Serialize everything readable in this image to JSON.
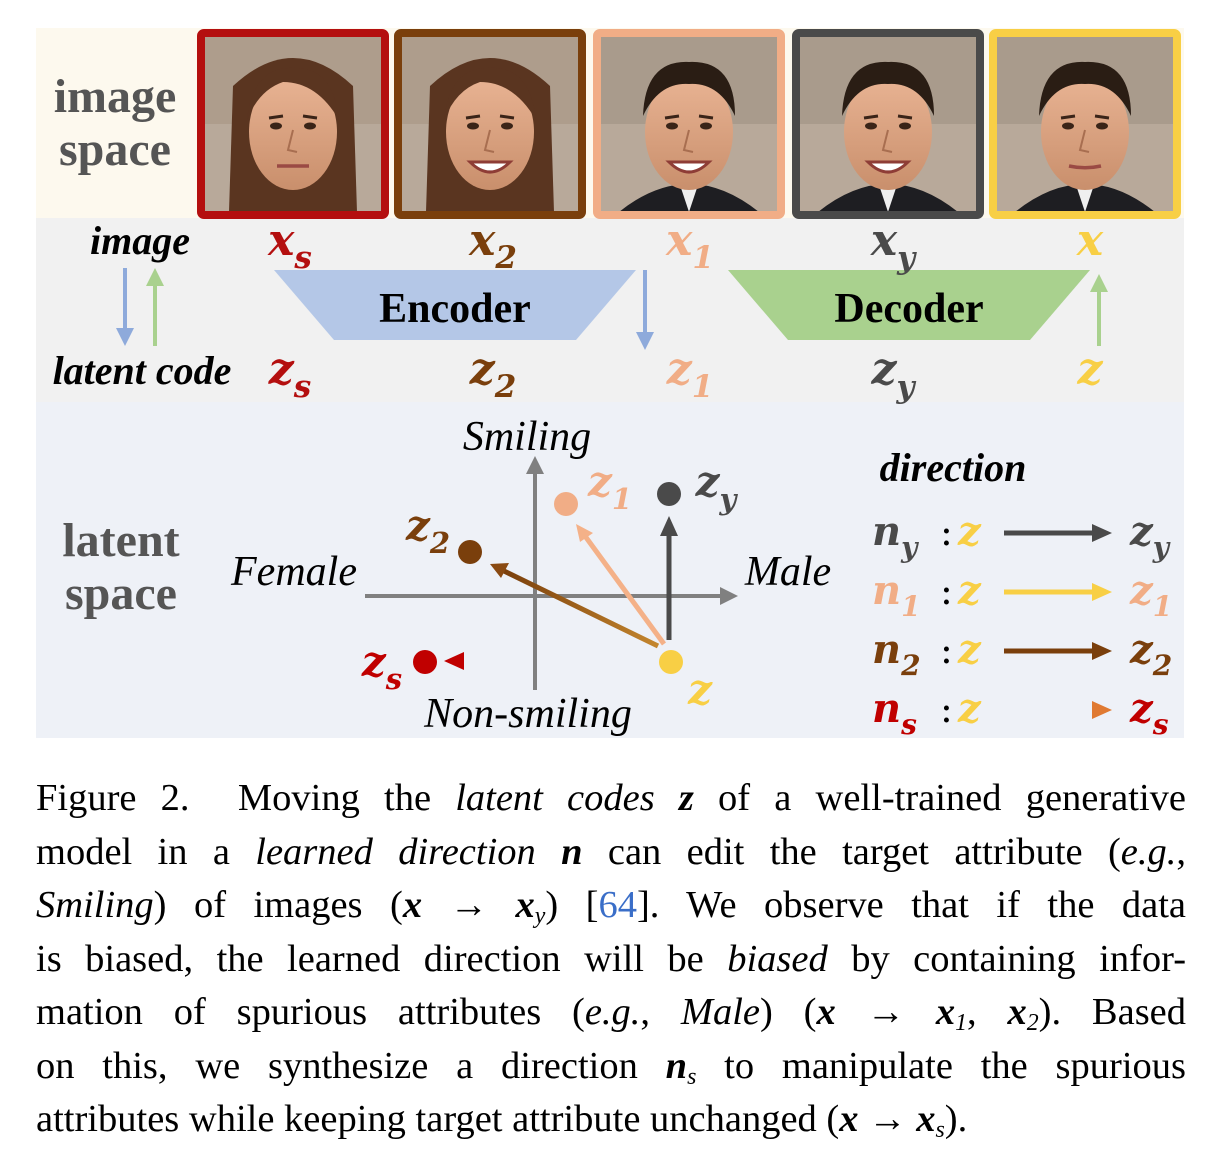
{
  "figure": {
    "rows": {
      "image_space": [
        "image",
        "space"
      ],
      "latent_space": [
        "latent",
        "space"
      ]
    },
    "mapping": {
      "image_label": "image",
      "latent_label": "latent code",
      "encoder_label": "Encoder",
      "decoder_label": "Decoder"
    },
    "samples": [
      {
        "image_symbol": "x",
        "image_sub": "s",
        "code_symbol": "z",
        "code_sub": "s",
        "color": "#b40f0f"
      },
      {
        "image_symbol": "x",
        "image_sub": "2",
        "code_symbol": "z",
        "code_sub": "2",
        "color": "#7a3f0c"
      },
      {
        "image_symbol": "x",
        "image_sub": "1",
        "code_symbol": "z",
        "code_sub": "1",
        "color": "#f1ad86"
      },
      {
        "image_symbol": "x",
        "image_sub": "y",
        "code_symbol": "z",
        "code_sub": "y",
        "color": "#4a4a4a"
      },
      {
        "image_symbol": "x",
        "image_sub": "",
        "code_symbol": "z",
        "code_sub": "",
        "color": "#f8cf45"
      }
    ],
    "latent_axes": {
      "up": "Smiling",
      "down": "Non-smiling",
      "left": "Female",
      "right": "Male"
    },
    "points": [
      {
        "symbol": "z",
        "sub": "2",
        "color": "#7a3f0c"
      },
      {
        "symbol": "z",
        "sub": "1",
        "color": "#f1ad86"
      },
      {
        "symbol": "z",
        "sub": "y",
        "color": "#4a4a4a"
      },
      {
        "symbol": "z",
        "sub": "s",
        "color": "#c00000"
      },
      {
        "symbol": "z",
        "sub": "",
        "color": "#f8cf45"
      }
    ],
    "direction_title": "direction",
    "directions": [
      {
        "n": "n",
        "n_sub": "y",
        "from": "z",
        "to": "z",
        "to_sub": "y",
        "color": "#4a4a4a"
      },
      {
        "n": "n",
        "n_sub": "1",
        "from": "z",
        "to": "z",
        "to_sub": "1",
        "color": "#f1ad86"
      },
      {
        "n": "n",
        "n_sub": "2",
        "from": "z",
        "to": "z",
        "to_sub": "2",
        "color": "#7a3f0c"
      },
      {
        "n": "n",
        "n_sub": "s",
        "from": "z",
        "to": "z",
        "to_sub": "s",
        "color": "#c00000"
      }
    ]
  },
  "caption": {
    "figure_number": "Figure 2.",
    "lines": [
      [
        "Moving the ",
        "latent codes",
        " ",
        "z",
        " of a well-trained generative"
      ],
      [
        "model in a ",
        "learned direction",
        " ",
        "n",
        " can edit the target attribute (",
        "e.g.",
        ","
      ],
      [
        "Smiling",
        ") of images (",
        "x",
        " → ",
        "x",
        "y",
        ") [",
        "64",
        "].  We observe that if the data"
      ],
      [
        "is biased, the learned direction will be ",
        "biased",
        " by containing infor-"
      ],
      [
        "mation of spurious attributes (",
        "e.g.",
        ", ",
        "Male",
        ") (",
        "x",
        " → ",
        "x",
        "1",
        ", ",
        "x",
        "2",
        ").  Based"
      ],
      [
        "on this, we synthesize a direction ",
        "n",
        "s",
        " to manipulate the spurious"
      ],
      [
        "attributes while keeping target attribute unchanged (",
        "x",
        " → ",
        "x",
        "s",
        ")."
      ]
    ]
  }
}
